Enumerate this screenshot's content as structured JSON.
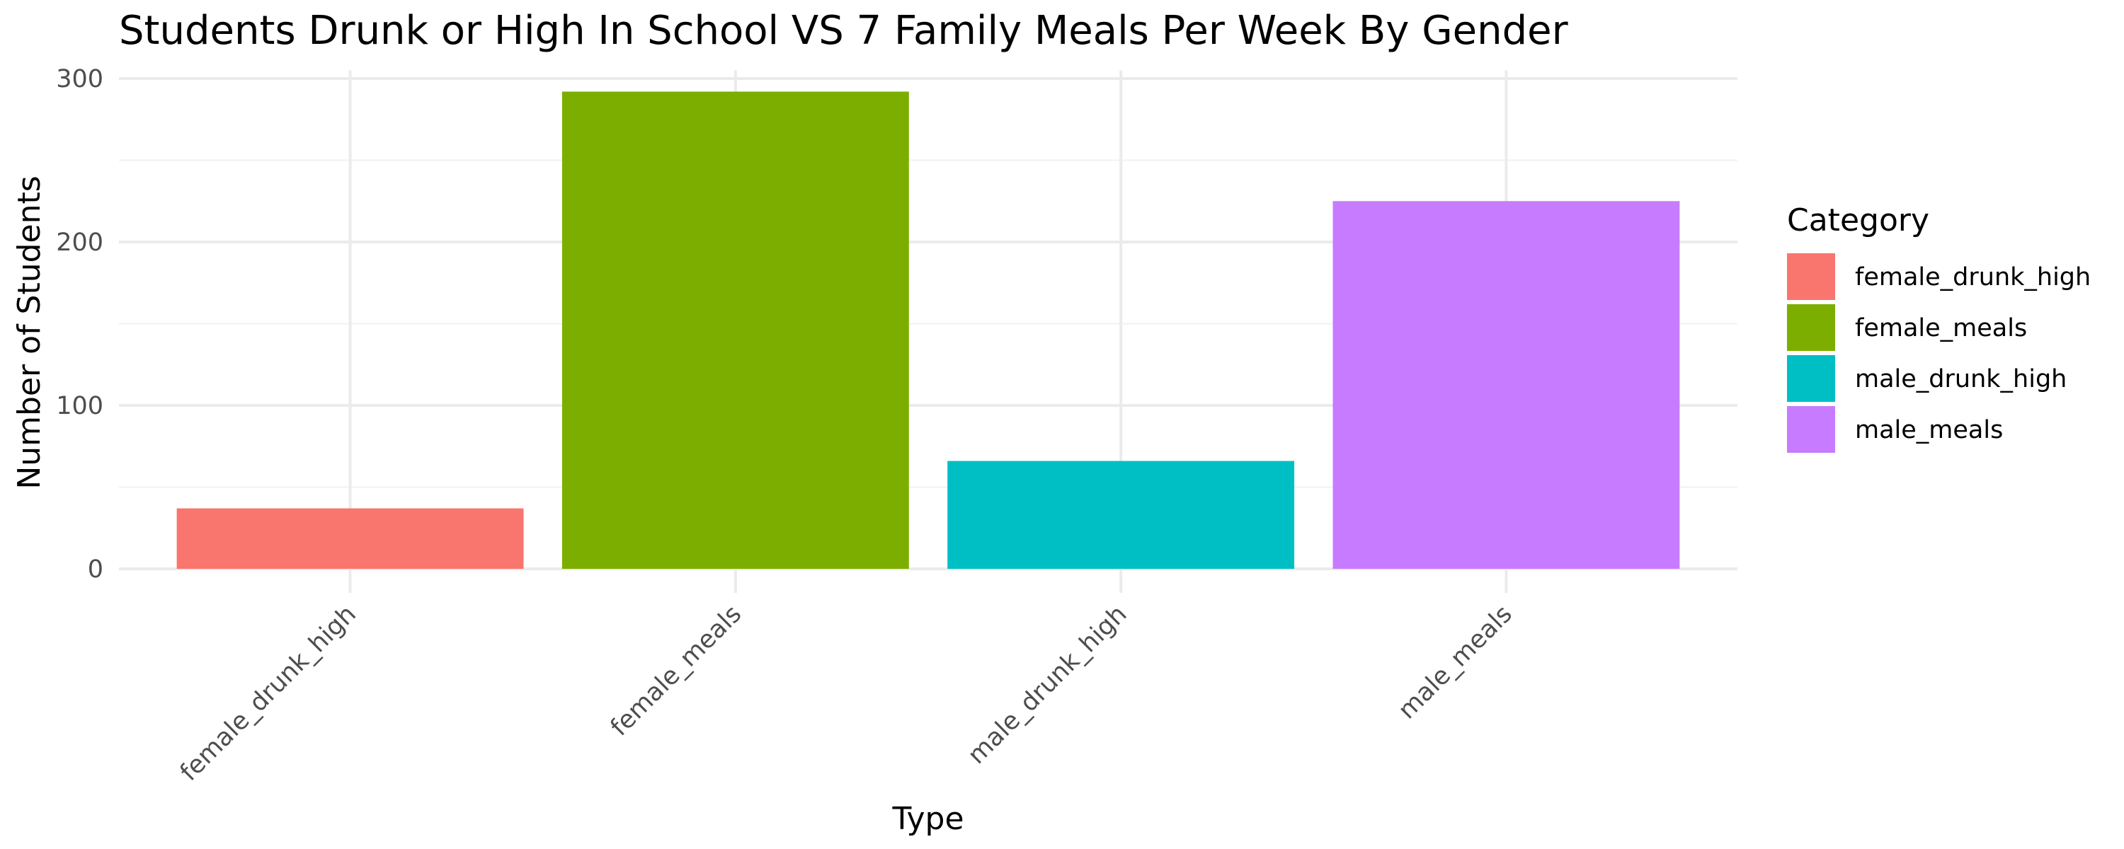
{
  "chart_data": {
    "type": "bar",
    "title": "Students Drunk or High In School VS 7 Family Meals Per Week By Gender",
    "xlabel": "Type",
    "ylabel": "Number of Students",
    "categories": [
      "female_drunk_high",
      "female_meals",
      "male_drunk_high",
      "male_meals"
    ],
    "values": [
      37,
      292,
      66,
      225
    ],
    "ylim": [
      0,
      305
    ],
    "yticks": [
      0,
      100,
      200,
      300
    ],
    "grid": true,
    "legend": {
      "title": "Category",
      "placement": "right",
      "entries": [
        "female_drunk_high",
        "female_meals",
        "male_drunk_high",
        "male_meals"
      ]
    },
    "colors": {
      "female_drunk_high": "#F8766D",
      "female_meals": "#7CAE00",
      "male_drunk_high": "#00BFC4",
      "male_meals": "#C77CFF"
    }
  }
}
